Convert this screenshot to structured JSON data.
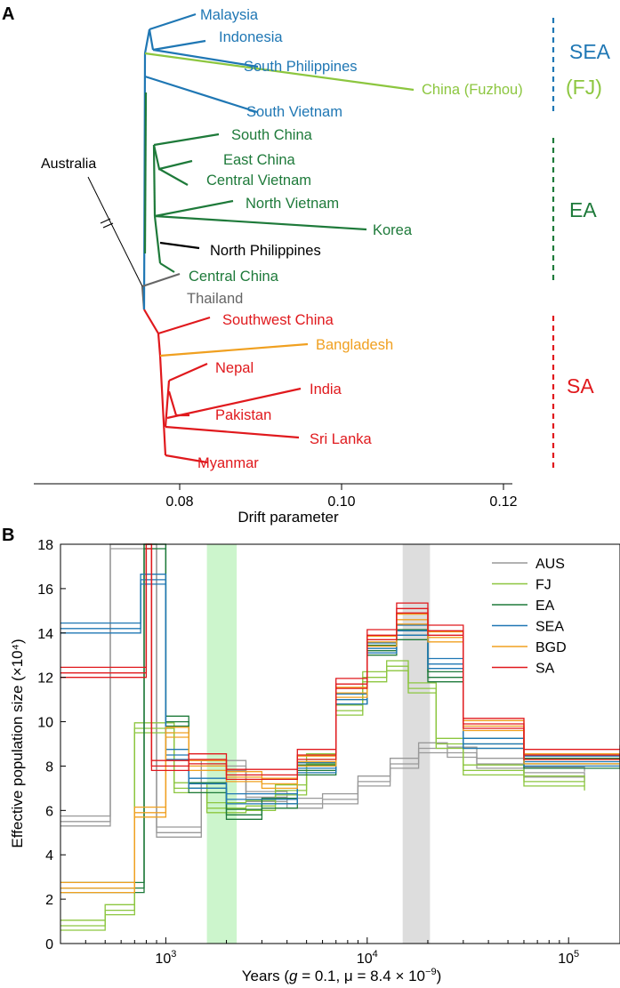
{
  "panel_a_label": "A",
  "panel_b_label": "B",
  "colors": {
    "sea": "#1f77b4",
    "fj": "#8cc63f",
    "ea": "#1e7a3a",
    "sa": "#e0191d",
    "bgd": "#f0a020",
    "aus": "#999999",
    "thailand": "#666666",
    "north_philippines": "#000000",
    "black": "#000000"
  },
  "chart_data": [
    {
      "type": "tree",
      "xlabel": "Drift parameter",
      "xticks": [
        "0.08",
        "0.10",
        "0.12"
      ],
      "xtick_values": [
        0.08,
        0.1,
        0.12
      ],
      "outgroup_label": "Australia",
      "leaves": [
        {
          "name": "Malaysia",
          "group": "sea"
        },
        {
          "name": "Indonesia",
          "group": "sea"
        },
        {
          "name": "South Philippines",
          "group": "sea"
        },
        {
          "name": "China (Fuzhou)",
          "group": "fj"
        },
        {
          "name": "South Vietnam",
          "group": "sea"
        },
        {
          "name": "South China",
          "group": "ea"
        },
        {
          "name": "East China",
          "group": "ea"
        },
        {
          "name": "Central Vietnam",
          "group": "ea"
        },
        {
          "name": "North Vietnam",
          "group": "ea"
        },
        {
          "name": "Korea",
          "group": "ea"
        },
        {
          "name": "North Philippines",
          "group": "north_philippines"
        },
        {
          "name": "Central China",
          "group": "ea"
        },
        {
          "name": "Thailand",
          "group": "thailand"
        },
        {
          "name": "Southwest China",
          "group": "sa"
        },
        {
          "name": "Bangladesh",
          "group": "bgd"
        },
        {
          "name": "Nepal",
          "group": "sa"
        },
        {
          "name": "India",
          "group": "sa"
        },
        {
          "name": "Pakistan",
          "group": "sa"
        },
        {
          "name": "Sri Lanka",
          "group": "sa"
        },
        {
          "name": "Myanmar",
          "group": "sa"
        }
      ],
      "group_labels": [
        {
          "text": "SEA",
          "group": "sea"
        },
        {
          "text": "(FJ)",
          "group": "fj"
        },
        {
          "text": "EA",
          "group": "ea"
        },
        {
          "text": "SA",
          "group": "sa"
        }
      ]
    },
    {
      "type": "line",
      "xlabel_parts": [
        "Years (",
        "g",
        " = 0.1, μ = 8.4 × 10",
        "−9",
        ")"
      ],
      "ylabel": "Effective population size (×10⁴)",
      "xscale": "log",
      "xlim": [
        300,
        180000
      ],
      "ylim": [
        0,
        18
      ],
      "yticks": [
        "0",
        "2",
        "4",
        "6",
        "8",
        "10",
        "12",
        "14",
        "16",
        "18"
      ],
      "ytick_values": [
        0,
        2,
        4,
        6,
        8,
        10,
        12,
        14,
        16,
        18
      ],
      "xticks": [
        {
          "value": 1000,
          "base": "10",
          "exp": "3"
        },
        {
          "value": 10000,
          "base": "10",
          "exp": "4"
        },
        {
          "value": 100000,
          "base": "10",
          "exp": "5"
        }
      ],
      "shaded_regions": [
        {
          "from": 1600,
          "to": 2250,
          "color": "#ccf5cc"
        },
        {
          "from": 15000,
          "to": 20500,
          "color": "#dddddd"
        }
      ],
      "legend_position": "top-right",
      "series": [
        {
          "name": "AUS",
          "color_key": "aus",
          "x": [
            300,
            530,
            900,
            1500,
            2500,
            4000,
            6000,
            9000,
            13000,
            18000,
            25000,
            35000,
            60000,
            120000
          ],
          "y": [
            5.5,
            18,
            5.0,
            8.0,
            6.6,
            6.3,
            6.5,
            7.3,
            8.1,
            8.8,
            8.6,
            8.1,
            7.7,
            7.5
          ]
        },
        {
          "name": "FJ",
          "color_key": "fj",
          "x": [
            300,
            500,
            700,
            1100,
            1600,
            2500,
            3500,
            5000,
            7000,
            9500,
            12500,
            16000,
            22000,
            30000,
            60000,
            120000
          ],
          "y": [
            0.8,
            1.5,
            9.7,
            7.0,
            6.1,
            6.2,
            6.9,
            8.3,
            10.5,
            12.0,
            12.5,
            11.5,
            9.0,
            7.8,
            7.3,
            7.1
          ]
        },
        {
          "name": "EA",
          "color_key": "ea",
          "x": [
            300,
            700,
            780,
            1000,
            1300,
            2000,
            3000,
            4500,
            7000,
            10000,
            14000,
            20000,
            30000,
            60000,
            180000
          ],
          "y": [
            2.5,
            2.5,
            18,
            10.0,
            7.0,
            5.8,
            6.3,
            7.8,
            11.0,
            13.2,
            13.9,
            12.0,
            9.0,
            8.1,
            8.2
          ]
        },
        {
          "name": "SEA",
          "color_key": "sea",
          "x": [
            300,
            750,
            1000,
            1300,
            2000,
            3000,
            4500,
            7000,
            10000,
            14000,
            20000,
            30000,
            60000,
            180000
          ],
          "y": [
            14.2,
            16.4,
            8.5,
            7.2,
            6.5,
            6.5,
            7.9,
            11.0,
            13.3,
            14.1,
            12.6,
            9.0,
            8.2,
            8.3
          ]
        },
        {
          "name": "BGD",
          "color_key": "bgd",
          "x": [
            300,
            700,
            1000,
            1300,
            2000,
            3000,
            4500,
            7000,
            10000,
            14000,
            20000,
            30000,
            60000,
            180000
          ],
          "y": [
            2.5,
            5.9,
            9.5,
            8.0,
            7.5,
            7.2,
            8.2,
            11.3,
            13.6,
            14.6,
            13.8,
            9.8,
            8.3,
            8.2
          ]
        },
        {
          "name": "SA",
          "color_key": "sa",
          "x": [
            300,
            800,
            850,
            1300,
            2000,
            3000,
            4500,
            7000,
            10000,
            14000,
            20000,
            30000,
            60000,
            180000
          ],
          "y": [
            12.2,
            18,
            8.0,
            8.3,
            7.6,
            7.6,
            8.5,
            11.7,
            13.9,
            15.1,
            14.1,
            9.9,
            8.5,
            8.7
          ]
        }
      ]
    }
  ]
}
